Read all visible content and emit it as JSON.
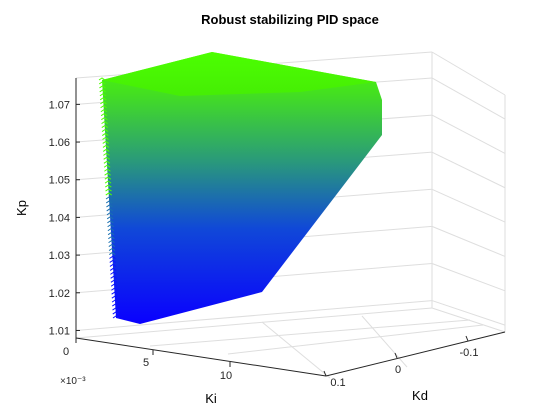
{
  "chart_data": {
    "type": "surface3d",
    "title": "Robust stabilizing PID space",
    "xlabel": "Ki",
    "ylabel": "Kd",
    "zlabel": "Kp",
    "x_exponent_label": "×10⁻³",
    "x_ticks": [
      "0",
      "5",
      "10"
    ],
    "y_ticks": [
      "0.1",
      "0",
      "-0.1"
    ],
    "z_ticks": [
      "1.01",
      "1.02",
      "1.03",
      "1.04",
      "1.05",
      "1.06",
      "1.07"
    ],
    "z_range": [
      1.008,
      1.077
    ],
    "grid": true,
    "colormap": {
      "low": "#0000ff",
      "high": "#4cff00"
    }
  }
}
